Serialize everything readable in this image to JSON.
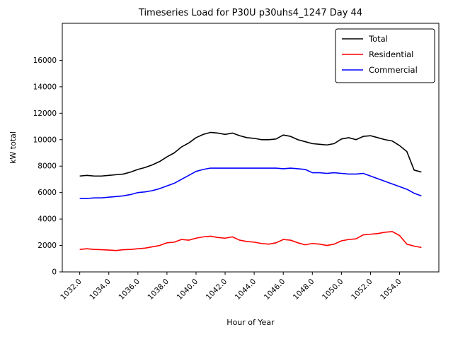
{
  "figure": {
    "title": "Timeseries Load for P30U p30uhs4_1247  Day 44",
    "xlabel": "Hour of Year",
    "ylabel": "kW total"
  },
  "chart_data": {
    "type": "line",
    "title": "Timeseries Load for P30U p30uhs4_1247  Day 44",
    "xlabel": "Hour of Year",
    "ylabel": "kW total",
    "xlim": [
      1030.8,
      1056.7
    ],
    "ylim": [
      0,
      18800
    ],
    "x_ticks": [
      1032.0,
      1034.0,
      1036.0,
      1038.0,
      1040.0,
      1042.0,
      1044.0,
      1046.0,
      1048.0,
      1050.0,
      1052.0,
      1054.0
    ],
    "y_ticks": [
      0,
      2000,
      4000,
      6000,
      8000,
      10000,
      12000,
      14000,
      16000
    ],
    "grid": false,
    "legend_position": "upper right",
    "legend_entries": [
      "Total",
      "Residential",
      "Commercial"
    ],
    "x": [
      1032.0,
      1032.5,
      1033.0,
      1033.5,
      1034.0,
      1034.5,
      1035.0,
      1035.5,
      1036.0,
      1036.5,
      1037.0,
      1037.5,
      1038.0,
      1038.5,
      1039.0,
      1039.5,
      1040.0,
      1040.5,
      1041.0,
      1041.5,
      1042.0,
      1042.5,
      1043.0,
      1043.5,
      1044.0,
      1044.5,
      1045.0,
      1045.5,
      1046.0,
      1046.5,
      1047.0,
      1047.5,
      1048.0,
      1048.5,
      1049.0,
      1049.5,
      1050.0,
      1050.5,
      1051.0,
      1051.5,
      1052.0,
      1052.5,
      1053.0,
      1053.5,
      1054.0,
      1054.5,
      1055.0,
      1055.5
    ],
    "series": [
      {
        "name": "Total",
        "color": "#000000",
        "values": [
          7250,
          7300,
          7250,
          7250,
          7300,
          7350,
          7400,
          7550,
          7750,
          7900,
          8100,
          8350,
          8700,
          9000,
          9450,
          9750,
          10150,
          10400,
          10550,
          10500,
          10400,
          10500,
          10300,
          10150,
          10100,
          10000,
          10000,
          10050,
          10350,
          10250,
          10000,
          9850,
          9700,
          9650,
          9600,
          9700,
          10050,
          10150,
          10000,
          10250,
          10300,
          10150,
          10000,
          9900,
          9550,
          9100,
          7700,
          7550
        ]
      },
      {
        "name": "Residential",
        "color": "#ff0000",
        "values": [
          1700,
          1750,
          1700,
          1680,
          1650,
          1620,
          1680,
          1700,
          1750,
          1800,
          1900,
          2000,
          2200,
          2250,
          2450,
          2400,
          2550,
          2650,
          2700,
          2600,
          2550,
          2650,
          2400,
          2300,
          2250,
          2150,
          2100,
          2200,
          2450,
          2400,
          2200,
          2050,
          2150,
          2100,
          2000,
          2100,
          2350,
          2450,
          2500,
          2800,
          2850,
          2900,
          3000,
          3050,
          2750,
          2100,
          1950,
          1850
        ]
      },
      {
        "name": "Commercial",
        "color": "#0000ff",
        "values": [
          5550,
          5550,
          5600,
          5600,
          5650,
          5700,
          5750,
          5850,
          6000,
          6050,
          6150,
          6300,
          6500,
          6700,
          7000,
          7300,
          7600,
          7750,
          7850,
          7850,
          7850,
          7850,
          7850,
          7850,
          7850,
          7850,
          7850,
          7850,
          7800,
          7850,
          7800,
          7750,
          7500,
          7500,
          7450,
          7500,
          7450,
          7400,
          7400,
          7450,
          7250,
          7050,
          6850,
          6650,
          6450,
          6250,
          5950,
          5750
        ]
      }
    ]
  }
}
